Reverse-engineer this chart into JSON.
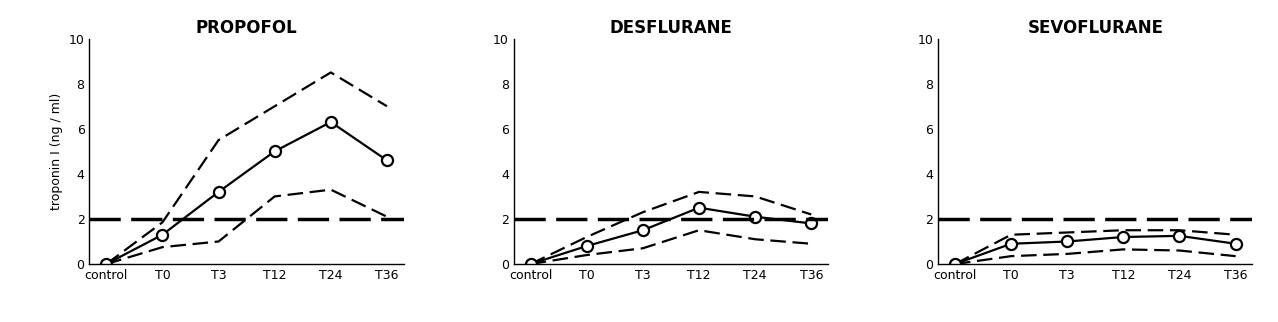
{
  "panels": [
    {
      "title": "PROPOFOL",
      "x_labels": [
        "control",
        "T0",
        "T3",
        "T12",
        "T24",
        "T36"
      ],
      "mean": [
        0.0,
        1.3,
        3.2,
        5.0,
        6.3,
        4.6
      ],
      "upper": [
        0.0,
        1.85,
        5.5,
        7.0,
        8.5,
        7.0
      ],
      "lower": [
        0.0,
        0.75,
        1.0,
        3.0,
        3.3,
        2.1
      ],
      "show_ylabel": true,
      "show_yticks": true
    },
    {
      "title": "DESFLURANE",
      "x_labels": [
        "control",
        "T0",
        "T3",
        "T12",
        "T24",
        "T36"
      ],
      "mean": [
        0.0,
        0.8,
        1.5,
        2.5,
        2.1,
        1.8
      ],
      "upper": [
        0.0,
        1.2,
        2.3,
        3.2,
        3.0,
        2.2
      ],
      "lower": [
        0.0,
        0.4,
        0.7,
        1.5,
        1.1,
        0.9
      ],
      "show_ylabel": false,
      "show_yticks": true
    },
    {
      "title": "SEVOFLURANE",
      "x_labels": [
        "control",
        "T0",
        "T3",
        "T12",
        "T24",
        "T36"
      ],
      "mean": [
        0.0,
        0.9,
        1.0,
        1.2,
        1.25,
        0.9
      ],
      "upper": [
        0.0,
        1.3,
        1.4,
        1.5,
        1.5,
        1.3
      ],
      "lower": [
        0.0,
        0.35,
        0.45,
        0.65,
        0.6,
        0.35
      ],
      "show_ylabel": false,
      "show_yticks": true
    }
  ],
  "reference_line": 2.0,
  "ylim": [
    0,
    10
  ],
  "yticks": [
    0,
    2,
    4,
    6,
    8,
    10
  ],
  "ylabel": "troponin I (ng / ml)",
  "bg_color": "#ffffff",
  "line_color": "#000000",
  "title_fontsize": 12,
  "label_fontsize": 9,
  "tick_fontsize": 9,
  "mean_linewidth": 1.6,
  "ci_linewidth": 1.6,
  "ref_linewidth": 2.5,
  "marker_size": 8
}
